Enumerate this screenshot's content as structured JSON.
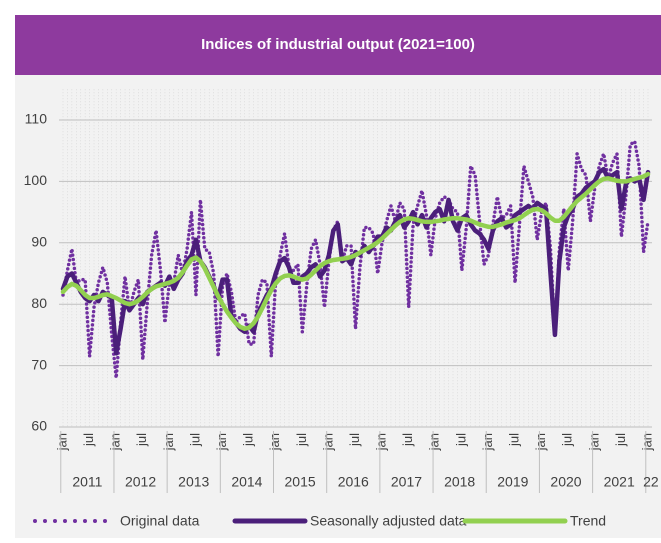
{
  "chart_data": {
    "type": "line",
    "title": "Indices of industrial output (2021=100)",
    "categories": [
      "jan",
      null,
      null,
      null,
      null,
      null,
      "jul",
      null,
      null,
      null,
      null,
      null,
      "jan",
      null,
      null,
      null,
      null,
      null,
      "jul",
      null,
      null,
      null,
      null,
      null,
      "jan",
      null,
      null,
      null,
      null,
      null,
      "jul",
      null,
      null,
      null,
      null,
      null,
      "jan",
      null,
      null,
      null,
      null,
      null,
      "jul",
      null,
      null,
      null,
      null,
      null,
      "jan",
      null,
      null,
      null,
      null,
      null,
      "jul",
      null,
      null,
      null,
      null,
      null,
      "jan",
      null,
      null,
      null,
      null,
      null,
      "jul",
      null,
      null,
      null,
      null,
      null,
      "jan",
      null,
      null,
      null,
      null,
      null,
      "jul",
      null,
      null,
      null,
      null,
      null,
      "jan",
      null,
      null,
      null,
      null,
      null,
      "jul",
      null,
      null,
      null,
      null,
      null,
      "jan",
      null,
      null,
      null,
      null,
      null,
      "jul",
      null,
      null,
      null,
      null,
      null,
      "jan",
      null,
      null,
      null,
      null,
      null,
      "jul",
      null,
      null,
      null,
      null,
      null,
      "jan",
      null,
      null,
      null,
      null,
      null,
      "jul",
      null,
      null,
      null,
      null,
      null,
      "jan"
    ],
    "year_labels": [
      "2011",
      "2012",
      "2013",
      "2014",
      "2015",
      "2016",
      "2017",
      "2018",
      "2019",
      "2020",
      "2021",
      "22"
    ],
    "ylim": [
      60,
      115
    ],
    "yticks": [
      60,
      70,
      80,
      90,
      100,
      110
    ],
    "grid": true,
    "series": [
      {
        "name": "Original data",
        "color": "#7030a0",
        "style": "dotted",
        "values": [
          81.5,
          85.5,
          89.0,
          83.5,
          84.0,
          84.0,
          71.5,
          79.5,
          83.5,
          86.0,
          83.5,
          75.0,
          68.0,
          77.0,
          84.5,
          79.0,
          82.0,
          84.0,
          71.0,
          80.0,
          88.0,
          92.0,
          85.5,
          77.0,
          83.5,
          83.5,
          88.0,
          85.0,
          89.0,
          95.0,
          81.5,
          97.0,
          89.0,
          88.5,
          85.0,
          71.5,
          83.0,
          85.0,
          82.0,
          77.0,
          78.0,
          78.5,
          73.5,
          73.5,
          81.5,
          84.0,
          83.5,
          71.5,
          84.0,
          88.0,
          91.5,
          86.0,
          85.5,
          86.5,
          75.5,
          83.0,
          89.0,
          90.5,
          86.5,
          79.5,
          87.0,
          92.0,
          93.5,
          87.0,
          89.5,
          89.5,
          76.0,
          86.0,
          92.5,
          92.5,
          91.5,
          85.0,
          90.0,
          93.5,
          96.0,
          93.5,
          96.5,
          95.5,
          79.5,
          93.0,
          96.0,
          98.5,
          94.5,
          88.0,
          94.0,
          96.5,
          97.5,
          97.0,
          95.5,
          95.0,
          85.5,
          92.5,
          102.5,
          101.0,
          93.5,
          86.5,
          88.0,
          93.0,
          97.5,
          94.0,
          94.5,
          96.0,
          83.5,
          93.0,
          102.5,
          100.0,
          97.5,
          90.5,
          95.0,
          96.5,
          89.0,
          75.0,
          89.0,
          95.5,
          85.5,
          93.5,
          104.5,
          102.0,
          101.0,
          93.5,
          99.0,
          102.5,
          104.5,
          100.5,
          103.0,
          104.5,
          91.0,
          97.5,
          106.0,
          106.5,
          102.5,
          88.5,
          93.5
        ]
      },
      {
        "name": "Seasonally adjusted data",
        "color": "#4b1f7a",
        "style": "solid",
        "values": [
          82.5,
          84.5,
          85.0,
          83.5,
          82.0,
          81.0,
          80.5,
          81.5,
          80.5,
          82.0,
          81.5,
          81.0,
          72.0,
          76.0,
          80.5,
          79.0,
          80.0,
          81.0,
          80.0,
          82.0,
          82.5,
          83.0,
          83.5,
          83.0,
          84.5,
          82.5,
          84.0,
          85.0,
          87.0,
          88.0,
          90.5,
          87.0,
          86.0,
          84.5,
          83.0,
          81.0,
          84.0,
          84.0,
          78.0,
          77.0,
          76.0,
          75.5,
          76.5,
          75.5,
          78.5,
          80.0,
          81.5,
          82.5,
          85.0,
          87.0,
          87.5,
          86.0,
          83.5,
          83.5,
          84.5,
          85.0,
          86.0,
          86.5,
          84.5,
          85.5,
          88.0,
          92.0,
          93.0,
          87.0,
          87.5,
          86.5,
          88.5,
          88.0,
          89.5,
          88.5,
          89.5,
          91.0,
          91.0,
          92.5,
          92.0,
          93.5,
          94.5,
          92.5,
          93.5,
          95.0,
          93.0,
          94.5,
          92.5,
          94.0,
          95.0,
          95.5,
          93.5,
          97.0,
          93.5,
          92.0,
          94.0,
          94.5,
          93.0,
          92.0,
          91.5,
          90.5,
          89.0,
          92.0,
          93.5,
          94.0,
          92.5,
          93.0,
          94.5,
          95.0,
          95.5,
          96.0,
          95.5,
          96.5,
          96.0,
          95.5,
          85.0,
          75.0,
          87.0,
          92.5,
          94.5,
          95.5,
          97.5,
          98.0,
          99.0,
          99.5,
          100.0,
          101.5,
          102.0,
          100.5,
          101.0,
          101.5,
          95.5,
          99.5,
          100.5,
          100.0,
          100.5,
          97.0,
          101.5
        ]
      },
      {
        "name": "Trend",
        "color": "#92d050",
        "style": "solid",
        "values": [
          82.0,
          82.8,
          83.3,
          83.0,
          82.3,
          81.5,
          81.0,
          81.0,
          81.2,
          81.5,
          81.6,
          81.3,
          81.0,
          80.6,
          80.2,
          80.0,
          80.2,
          80.6,
          81.2,
          81.9,
          82.5,
          82.9,
          83.1,
          83.3,
          83.5,
          83.8,
          84.3,
          85.2,
          86.3,
          87.3,
          87.6,
          87.0,
          85.8,
          84.3,
          82.8,
          81.3,
          80.0,
          78.8,
          77.8,
          76.9,
          76.3,
          76.0,
          76.2,
          76.9,
          78.0,
          79.4,
          80.9,
          82.3,
          83.4,
          84.2,
          84.6,
          84.7,
          84.5,
          84.2,
          84.0,
          84.2,
          84.8,
          85.5,
          86.2,
          86.7,
          87.0,
          87.2,
          87.3,
          87.4,
          87.5,
          87.7,
          88.0,
          88.4,
          88.8,
          89.2,
          89.6,
          90.1,
          90.7,
          91.4,
          92.1,
          92.8,
          93.4,
          93.8,
          94.0,
          93.9,
          93.7,
          93.5,
          93.4,
          93.4,
          93.5,
          93.6,
          93.8,
          93.9,
          94.0,
          94.0,
          93.9,
          93.8,
          93.6,
          93.3,
          93.0,
          92.8,
          92.6,
          92.6,
          92.8,
          93.0,
          93.3,
          93.5,
          93.7,
          94.0,
          94.5,
          95.0,
          95.4,
          95.5,
          95.3,
          94.8,
          94.1,
          93.6,
          93.6,
          94.2,
          95.1,
          96.0,
          96.8,
          97.4,
          98.0,
          98.7,
          99.4,
          100.0,
          100.4,
          100.5,
          100.3,
          100.1,
          100.0,
          100.0,
          100.2,
          100.4,
          100.6,
          100.8,
          101.2
        ]
      }
    ]
  }
}
